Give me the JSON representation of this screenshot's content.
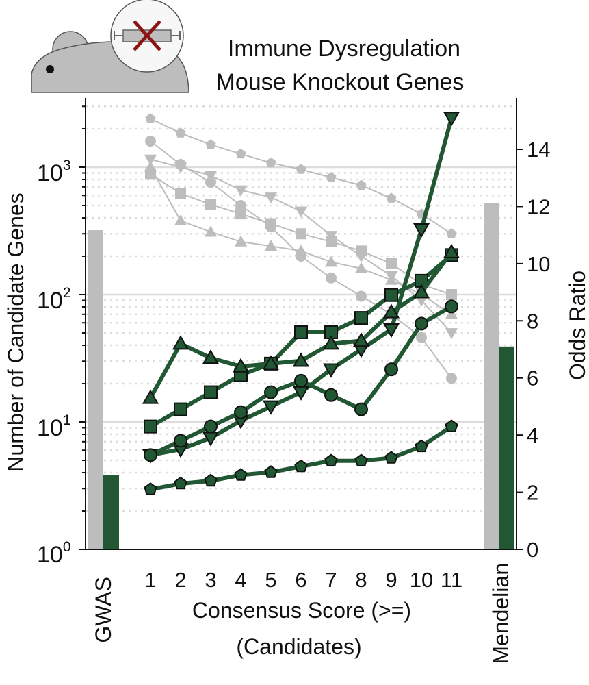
{
  "chart_data": {
    "type": "line",
    "title": "Immune Dysregulation Mouse Knockout Genes",
    "title_lines": [
      "Immune Dysregulation",
      "Mouse Knockout Genes"
    ],
    "xlabel_lines": [
      "Consensus Score (>=)",
      "(Candidates)"
    ],
    "ylabel_left": "Number of Candidate Genes",
    "ylabel_right": "Odds Ratio",
    "y_left_scale": "log",
    "y_left_lim": [
      1,
      3000
    ],
    "y_left_ticks": [
      {
        "base": "10",
        "exp": "0",
        "value": 1
      },
      {
        "base": "10",
        "exp": "1",
        "value": 10
      },
      {
        "base": "10",
        "exp": "2",
        "value": 100
      },
      {
        "base": "10",
        "exp": "3",
        "value": 1000
      }
    ],
    "y_right_lim": [
      0,
      15.3
    ],
    "y_right_ticks": [
      "0",
      "2",
      "4",
      "6",
      "8",
      "10",
      "12",
      "14"
    ],
    "categories": [
      "1",
      "2",
      "3",
      "4",
      "5",
      "6",
      "7",
      "8",
      "9",
      "10",
      "11"
    ],
    "side_categories": {
      "left": "GWAS",
      "right": "Mendelian"
    },
    "grid": true,
    "colors": {
      "count_series": "#bdbdbd",
      "odds_series": "#215733",
      "gridline": "#dcdcdc"
    },
    "side_bars": {
      "GWAS": {
        "count": 320,
        "odds_ratio": 2.6
      },
      "Mendelian": {
        "count": 520,
        "odds_ratio": 7.1
      }
    },
    "count_series": [
      {
        "marker": "pentagon",
        "values": [
          2400,
          1850,
          1500,
          1270,
          1080,
          960,
          830,
          720,
          570,
          430,
          300
        ]
      },
      {
        "marker": "circle",
        "values": [
          1600,
          1050,
          760,
          500,
          340,
          200,
          135,
          97,
          70,
          46,
          22
        ]
      },
      {
        "marker": "triangle-down",
        "values": [
          1150,
          1000,
          860,
          660,
          580,
          450,
          290,
          200,
          140,
          90,
          50
        ]
      },
      {
        "marker": "square",
        "values": [
          880,
          620,
          510,
          430,
          360,
          300,
          260,
          220,
          175,
          120,
          100
        ]
      },
      {
        "marker": "triangle-up",
        "values": [
          1000,
          380,
          310,
          260,
          240,
          220,
          180,
          160,
          130,
          100,
          70
        ]
      }
    ],
    "odds_series": [
      {
        "marker": "triangle-down",
        "values": [
          3.3,
          3.5,
          3.9,
          4.5,
          5.0,
          5.5,
          6.3,
          7.0,
          7.7,
          11.2,
          15.1
        ]
      },
      {
        "marker": "square",
        "values": [
          4.3,
          4.9,
          5.5,
          6.1,
          6.5,
          7.6,
          7.6,
          8.1,
          8.9,
          9.4,
          10.3
        ]
      },
      {
        "marker": "triangle-up",
        "values": [
          5.3,
          7.2,
          6.7,
          6.4,
          6.5,
          6.6,
          7.2,
          7.3,
          8.3,
          9.0,
          10.4
        ]
      },
      {
        "marker": "circle",
        "values": [
          3.3,
          3.8,
          4.3,
          4.8,
          5.5,
          5.9,
          5.4,
          4.9,
          6.3,
          7.9,
          8.5
        ]
      },
      {
        "marker": "pentagon",
        "values": [
          2.1,
          2.3,
          2.4,
          2.6,
          2.7,
          2.9,
          3.1,
          3.1,
          3.2,
          3.6,
          4.3
        ]
      }
    ]
  }
}
